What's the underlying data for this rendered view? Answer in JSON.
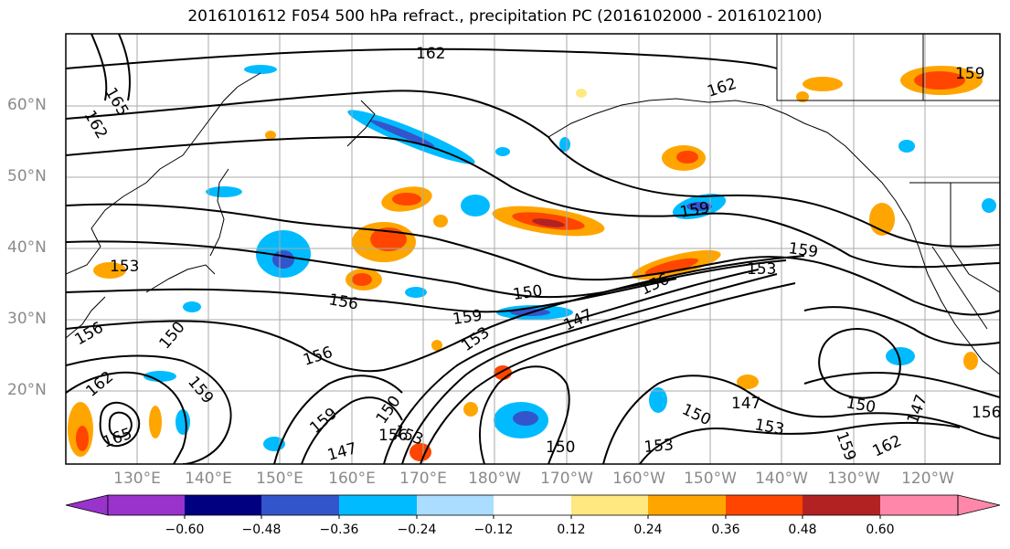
{
  "title": "2016101612 F054 500 hPa refract., precipitation PC (2016102000 - 2016102100)",
  "latitude_labels": [
    "60°N",
    "50°N",
    "40°N",
    "30°N",
    "20°N"
  ],
  "longitude_labels": [
    "130°E",
    "140°E",
    "150°E",
    "160°E",
    "170°E",
    "180°W",
    "170°W",
    "160°W",
    "150°W",
    "140°W",
    "130°W",
    "120°W"
  ],
  "contour_labels": [
    "162",
    "165",
    "162",
    "159",
    "162",
    "159",
    "159",
    "153",
    "156",
    "150",
    "153",
    "159",
    "153",
    "156",
    "147",
    "156",
    "156",
    "150",
    "162",
    "159",
    "165",
    "150",
    "153",
    "159",
    "147",
    "150",
    "147",
    "153",
    "150",
    "156",
    "150",
    "153",
    "159",
    "162",
    "147",
    "156"
  ],
  "colorbar": {
    "ticks": [
      "−0.60",
      "−0.48",
      "−0.36",
      "−0.24",
      "−0.12",
      "0.12",
      "0.24",
      "0.36",
      "0.48",
      "0.60"
    ],
    "colors": [
      "#9933cc",
      "#000080",
      "#3355cc",
      "#00bbff",
      "#aaddff",
      "#ffffff",
      "#ffe880",
      "#ffa500",
      "#ff4500",
      "#b22222",
      "#ff88aa"
    ]
  }
}
